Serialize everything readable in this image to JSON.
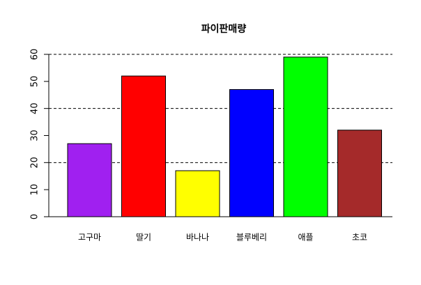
{
  "chart_data": {
    "type": "bar",
    "title": "파이판매량",
    "categories": [
      "고구마",
      "딸기",
      "바나나",
      "블루베리",
      "애플",
      "초코"
    ],
    "values": [
      27,
      52,
      17,
      47,
      59,
      32
    ],
    "colors": [
      "#a020f0",
      "#ff0000",
      "#ffff00",
      "#0000ff",
      "#00ff00",
      "#a52a2a"
    ],
    "ylim": [
      0,
      60
    ],
    "yticks": [
      0,
      10,
      20,
      30,
      40,
      50,
      60
    ],
    "reference_lines": [
      20,
      40,
      60
    ]
  }
}
